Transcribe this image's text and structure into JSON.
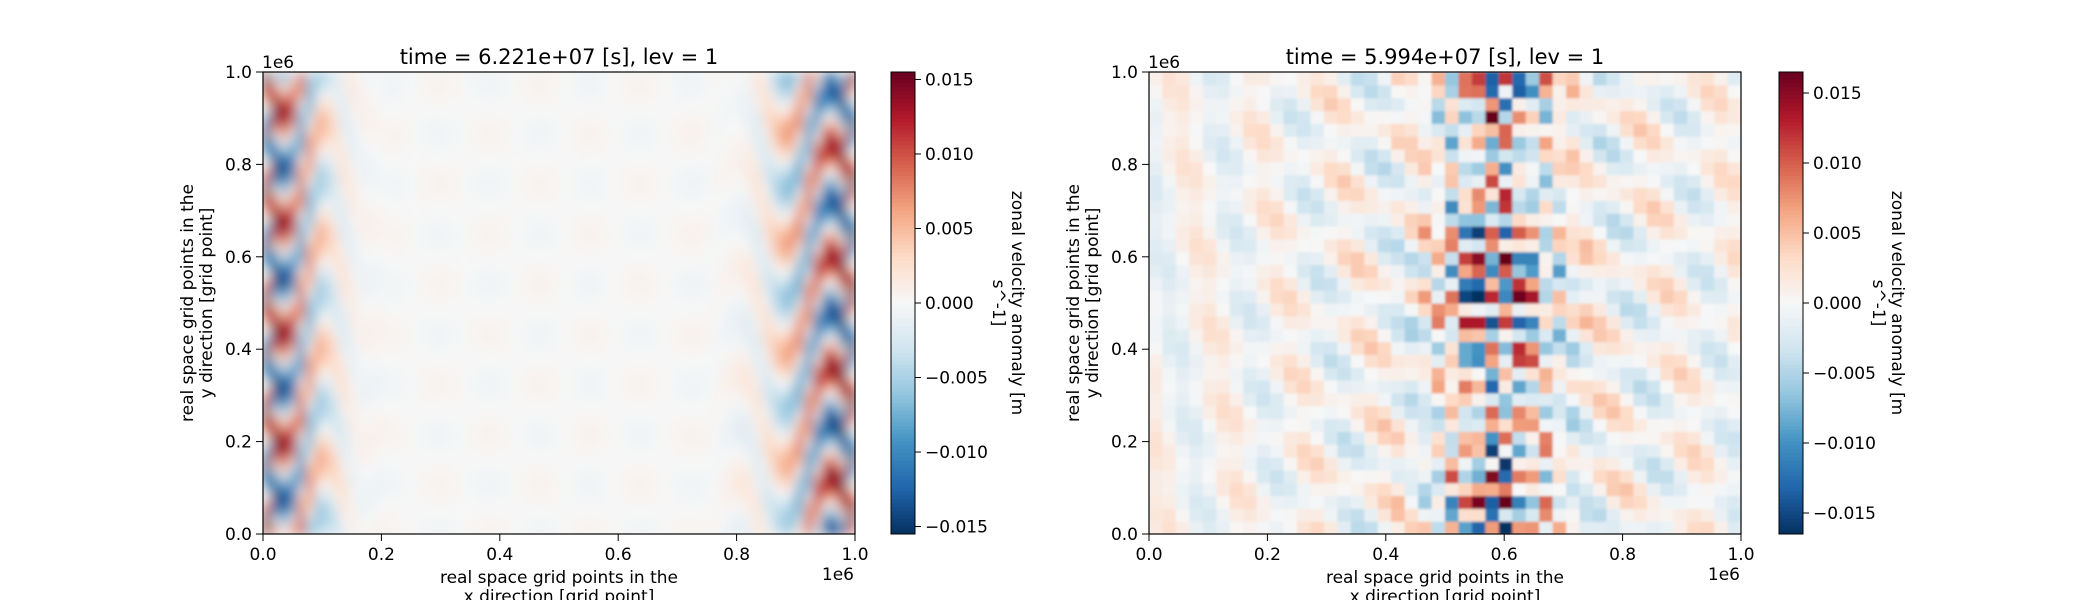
{
  "chart_data": [
    {
      "type": "heatmap",
      "title": "time = 6.221e+07 [s], lev = 1",
      "xlabel": [
        "real space grid points in the",
        "x direction [grid point]"
      ],
      "ylabel": [
        "real space grid points in the",
        "y direction [grid point]"
      ],
      "x_offset_label": "1e6",
      "y_offset_label": "1e6",
      "xlim": [
        0,
        1
      ],
      "ylim": [
        0,
        1
      ],
      "xticks": [
        "0.0",
        "0.2",
        "0.4",
        "0.6",
        "0.8",
        "1.0"
      ],
      "yticks": [
        "0.0",
        "0.2",
        "0.4",
        "0.6",
        "0.8",
        "1.0"
      ],
      "colorbar": {
        "label": [
          "zonal velocity anomaly [m",
          "s^-1]"
        ],
        "range": [
          -0.0155,
          0.0155
        ],
        "ticks": [
          "0.015",
          "0.010",
          "0.005",
          "0.000",
          "−0.005",
          "−0.010",
          "−0.015"
        ],
        "tick_values": [
          0.015,
          0.01,
          0.005,
          0,
          -0.005,
          -0.01,
          -0.015
        ],
        "colormap": "RdBu_r"
      },
      "pattern": "Wave packets concentrated near the left edge (x 0.0-0.15) and right edge (x 0.82-1.0), anomaly up to about +/-0.015; interior near zero"
    },
    {
      "type": "heatmap",
      "title": "time = 5.994e+07 [s], lev = 1",
      "xlabel": [
        "real space grid points in the",
        "x direction [grid point]"
      ],
      "ylabel": [
        "real space grid points in the",
        "y direction [grid point]"
      ],
      "x_offset_label": "1e6",
      "y_offset_label": "1e6",
      "xlim": [
        0,
        1
      ],
      "ylim": [
        0,
        1
      ],
      "xticks": [
        "0.0",
        "0.2",
        "0.4",
        "0.6",
        "0.8",
        "1.0"
      ],
      "yticks": [
        "0.0",
        "0.2",
        "0.4",
        "0.6",
        "0.8",
        "1.0"
      ],
      "colorbar": {
        "label": [
          "zonal velocity anomaly [m",
          "s^-1]"
        ],
        "range": [
          -0.0165,
          0.0165
        ],
        "ticks": [
          "0.015",
          "0.010",
          "0.005",
          "0.000",
          "−0.005",
          "−0.010",
          "−0.015"
        ],
        "tick_values": [
          0.015,
          0.01,
          0.005,
          0,
          -0.005,
          -0.01,
          -0.015
        ],
        "colormap": "RdBu_r"
      },
      "pattern": "Strong blocky wave packet centred near x 0.6 (band 0.45-0.7), anomaly up to about +/-0.016; weaker wave field elsewhere"
    }
  ]
}
